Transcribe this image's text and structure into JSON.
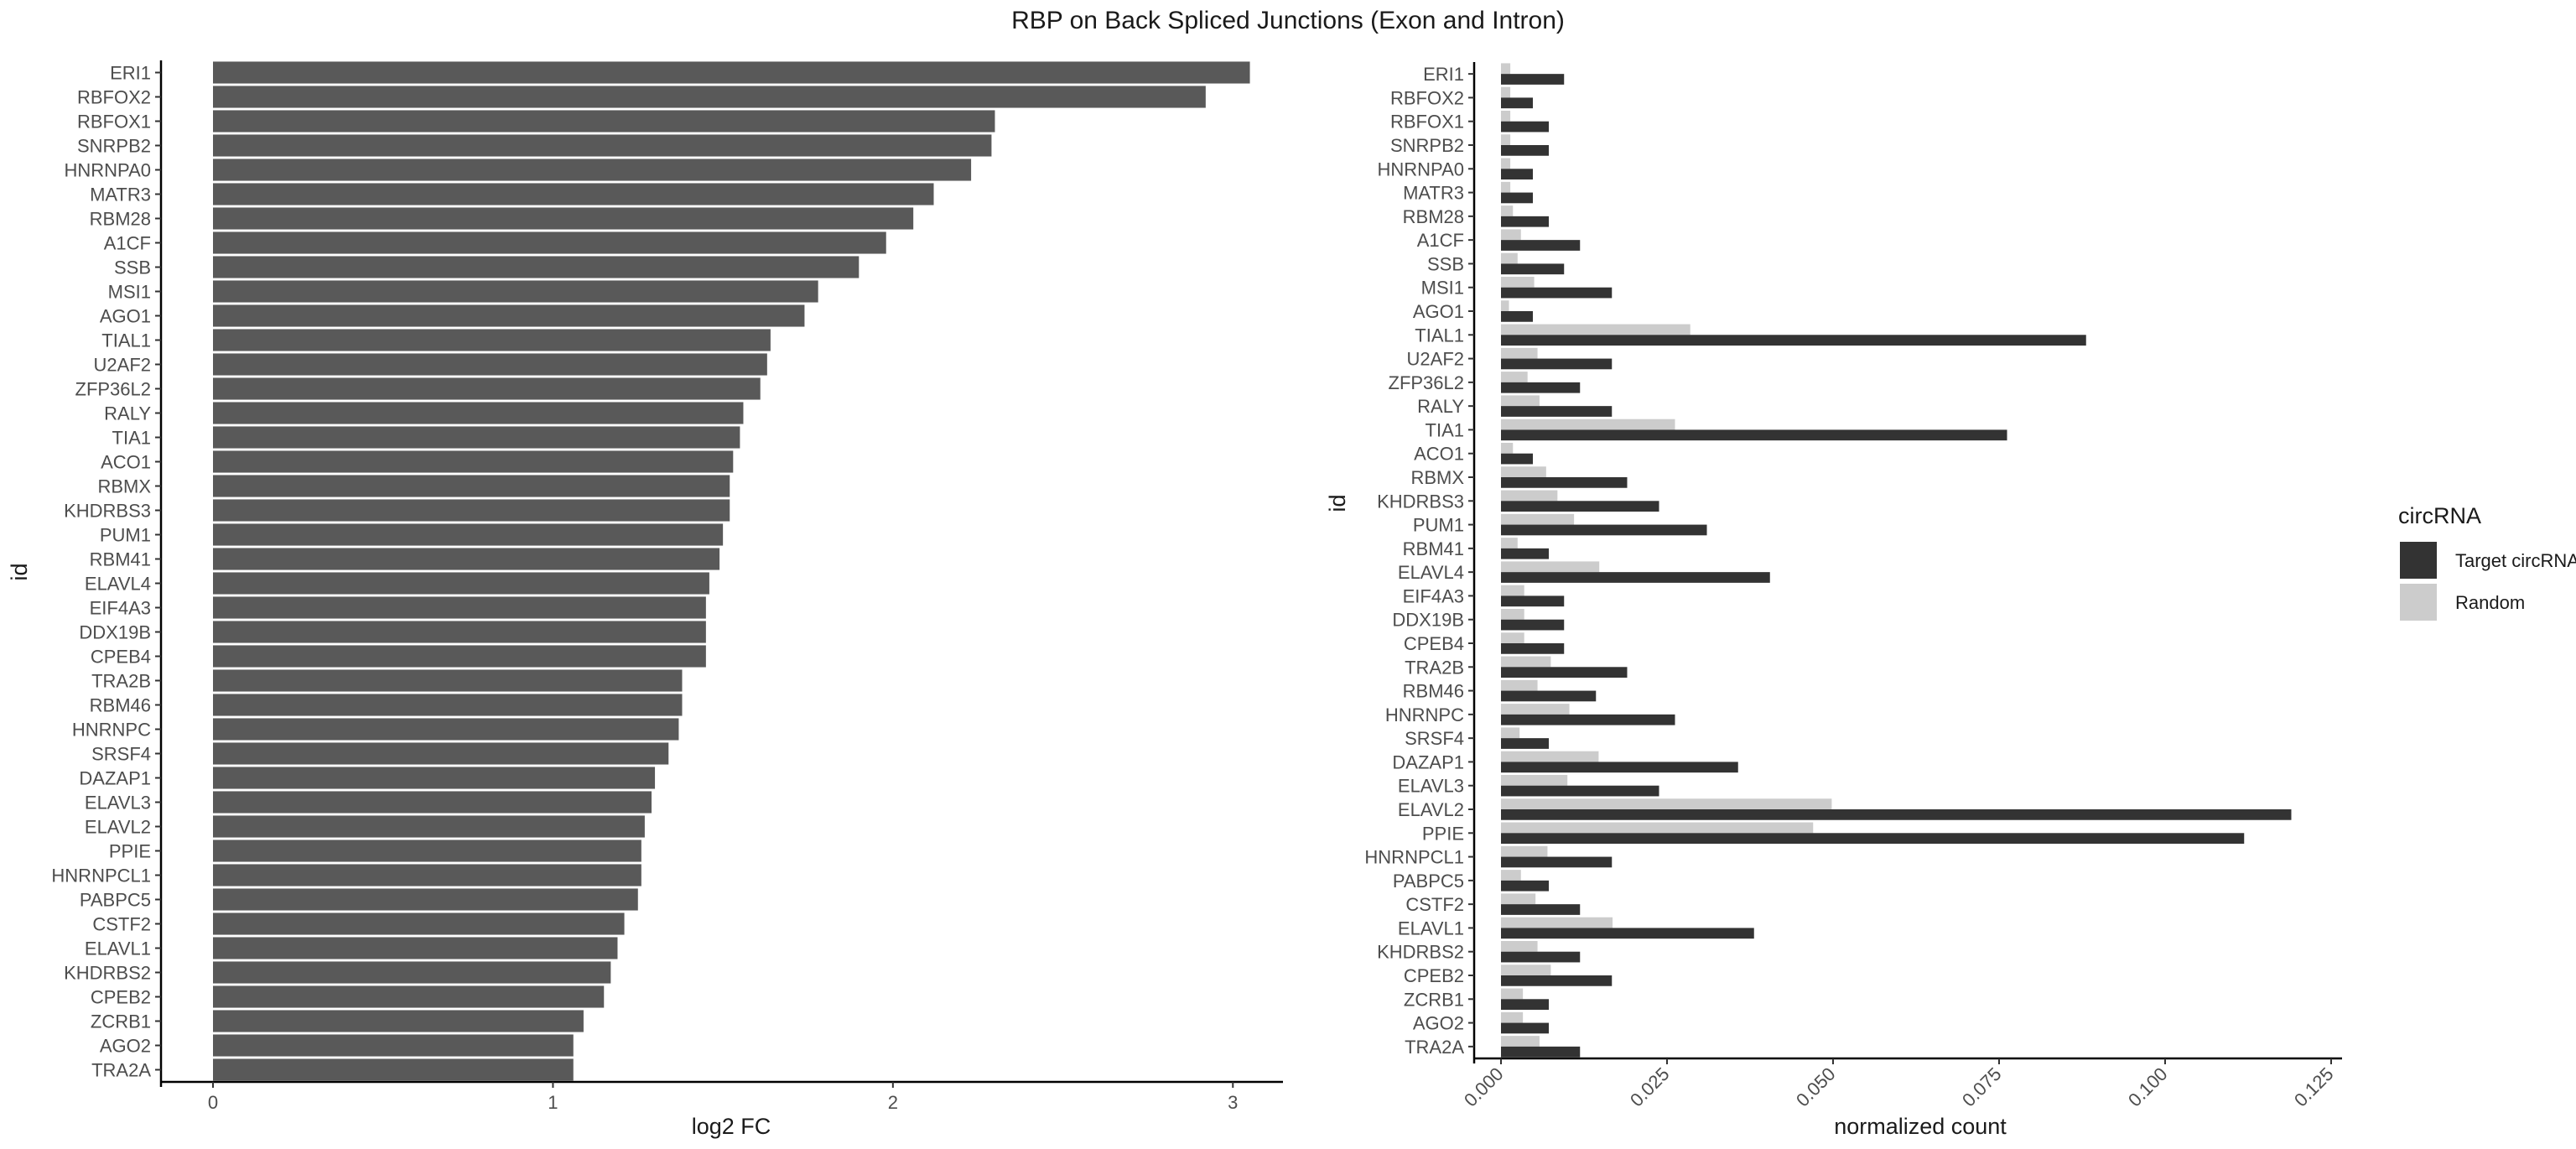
{
  "chart_data": {
    "title": "RBP on Back Spliced Junctions (Exon and Intron)",
    "ids": [
      "ERI1",
      "RBFOX2",
      "RBFOX1",
      "SNRPB2",
      "HNRNPA0",
      "MATR3",
      "RBM28",
      "A1CF",
      "SSB",
      "MSI1",
      "AGO1",
      "TIAL1",
      "U2AF2",
      "ZFP36L2",
      "RALY",
      "TIA1",
      "ACO1",
      "RBMX",
      "KHDRBS3",
      "PUM1",
      "RBM41",
      "ELAVL4",
      "EIF4A3",
      "DDX19B",
      "CPEB4",
      "TRA2B",
      "RBM46",
      "HNRNPC",
      "SRSF4",
      "DAZAP1",
      "ELAVL3",
      "ELAVL2",
      "PPIE",
      "HNRNPCL1",
      "PABPC5",
      "CSTF2",
      "ELAVL1",
      "KHDRBS2",
      "CPEB2",
      "ZCRB1",
      "AGO2",
      "TRA2A"
    ],
    "panels": [
      {
        "type": "bar",
        "orientation": "horizontal",
        "xlabel": "log2 FC",
        "ylabel": "id",
        "xlim": [
          0,
          3.15
        ],
        "xticks": [
          "0",
          "1",
          "2",
          "3"
        ],
        "bar_color": "#595959",
        "values": [
          3.05,
          2.92,
          2.3,
          2.29,
          2.23,
          2.12,
          2.06,
          1.98,
          1.9,
          1.78,
          1.74,
          1.64,
          1.63,
          1.61,
          1.56,
          1.55,
          1.53,
          1.52,
          1.52,
          1.5,
          1.49,
          1.46,
          1.45,
          1.45,
          1.45,
          1.38,
          1.38,
          1.37,
          1.34,
          1.3,
          1.29,
          1.27,
          1.26,
          1.26,
          1.25,
          1.21,
          1.19,
          1.17,
          1.15,
          1.09,
          1.06,
          1.06
        ]
      },
      {
        "type": "bar",
        "orientation": "horizontal",
        "grouped": true,
        "xlabel": "normalized count",
        "ylabel": "id",
        "xlim": [
          0,
          0.125
        ],
        "xticks": [
          "0.000",
          "0.025",
          "0.050",
          "0.075",
          "0.100",
          "0.125"
        ],
        "series": [
          {
            "name": "Target circRNAs",
            "color": "#333333",
            "values": [
              0.0095,
              0.0048,
              0.0072,
              0.0072,
              0.0048,
              0.0048,
              0.0072,
              0.0119,
              0.0095,
              0.0167,
              0.0048,
              0.0881,
              0.0167,
              0.0119,
              0.0167,
              0.0762,
              0.0048,
              0.019,
              0.0238,
              0.031,
              0.0072,
              0.0405,
              0.0095,
              0.0095,
              0.0095,
              0.019,
              0.0143,
              0.0262,
              0.0072,
              0.0357,
              0.0238,
              0.119,
              0.1119,
              0.0167,
              0.0072,
              0.0119,
              0.0381,
              0.0119,
              0.0167,
              0.0072,
              0.0072,
              0.0119
            ]
          },
          {
            "name": "Random",
            "color": "#cccccc",
            "values": [
              0.0014,
              0.0014,
              0.0014,
              0.0014,
              0.0014,
              0.0014,
              0.0018,
              0.003,
              0.0025,
              0.005,
              0.0012,
              0.0285,
              0.0055,
              0.004,
              0.0058,
              0.0262,
              0.0018,
              0.0068,
              0.0085,
              0.011,
              0.0025,
              0.0148,
              0.0035,
              0.0035,
              0.0035,
              0.0075,
              0.0055,
              0.0103,
              0.0028,
              0.0147,
              0.01,
              0.0498,
              0.047,
              0.007,
              0.003,
              0.0052,
              0.0168,
              0.0055,
              0.0075,
              0.0033,
              0.0033,
              0.0058
            ]
          }
        ]
      }
    ],
    "legend": {
      "title": "circRNA",
      "placement": "right",
      "entries": [
        {
          "label": "Target circRNAs",
          "color": "#333333"
        },
        {
          "label": "Random",
          "color": "#cccccc"
        }
      ]
    }
  }
}
